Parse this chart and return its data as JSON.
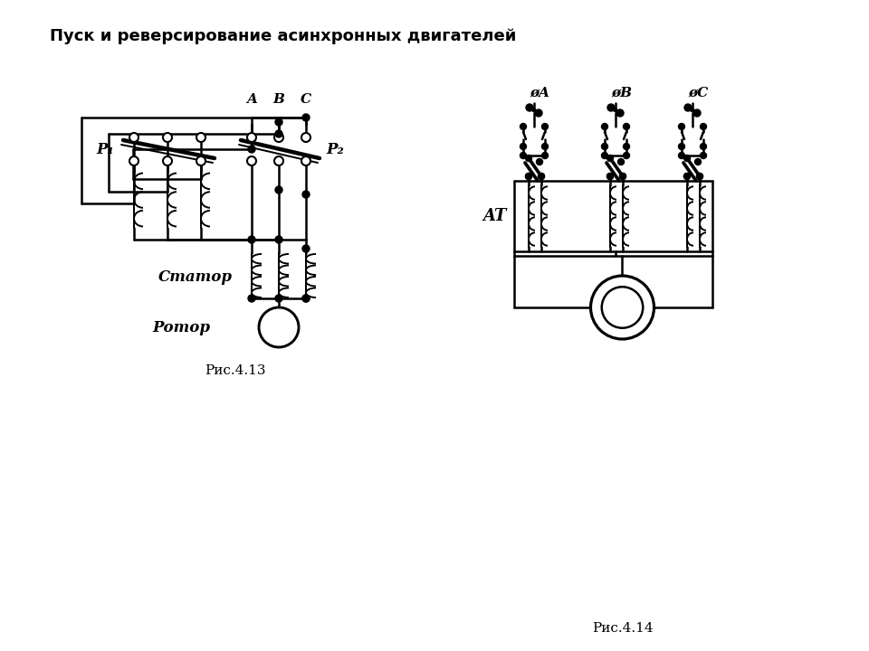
{
  "title": "Пуск и реверсирование асинхронных двигателей",
  "fig413": "Рис.4.13",
  "fig414": "Рис.4.14",
  "label_P1": "P₁",
  "label_P2": "P₂",
  "label_stator": "Статор",
  "label_rotor": "Ротор",
  "label_AT": "AT",
  "bg_color": "#ffffff",
  "line_color": "#000000",
  "lw": 1.8,
  "tlw": 1.4
}
